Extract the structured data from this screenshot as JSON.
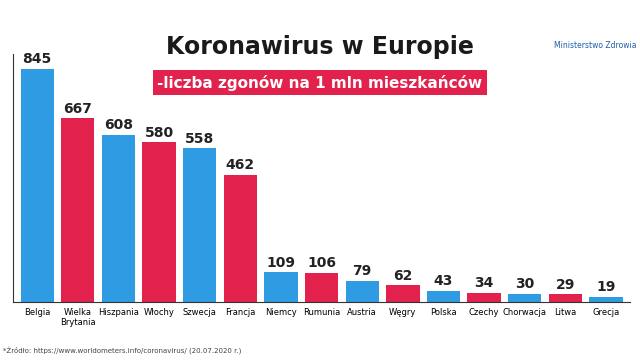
{
  "chart_data": {
    "type": "bar",
    "title": "Koronawirus w Europie",
    "subtitle": "-liczba zgonów na 1 mln mieszkańców",
    "source": "*Źródło: https://www.worldometers.info/coronavirus/ (20.07.2020 r.)",
    "logo": "Ministerstwo Zdrowia",
    "categories": [
      "Belgia",
      "Wielka Brytania",
      "Hiszpania",
      "Włochy",
      "Szwecja",
      "Francja",
      "Niemcy",
      "Rumunia",
      "Austria",
      "Węgry",
      "Polska",
      "Czechy",
      "Chorwacja",
      "Litwa",
      "Grecja"
    ],
    "values": [
      845,
      667,
      608,
      580,
      558,
      462,
      109,
      106,
      79,
      62,
      43,
      34,
      30,
      29,
      19
    ],
    "colors": [
      "#2e9be3",
      "#e2224c",
      "#2e9be3",
      "#e2224c",
      "#2e9be3",
      "#e2224c",
      "#2e9be3",
      "#e2224c",
      "#2e9be3",
      "#e2224c",
      "#2e9be3",
      "#e2224c",
      "#2e9be3",
      "#e2224c",
      "#2e9be3"
    ],
    "ylim": [
      0,
      900
    ],
    "data_labels": true,
    "tick_labels": "x",
    "grid": false
  }
}
